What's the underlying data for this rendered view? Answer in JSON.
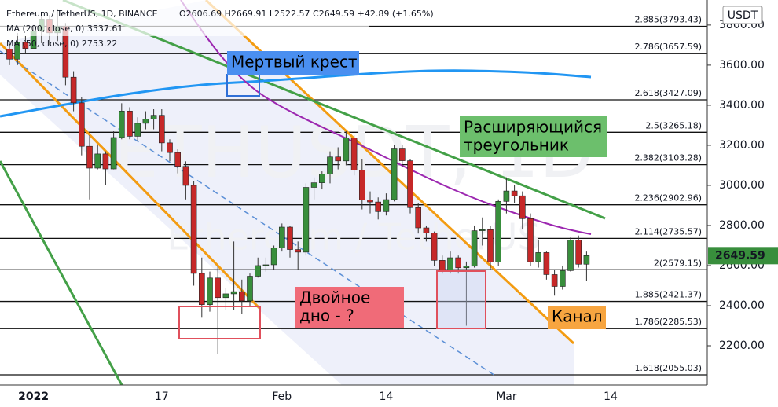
{
  "chart_data": {
    "type": "candlestick",
    "title": "Ethereum / TetherUS, 1D, BINANCE",
    "header_values": "O2606.69 H2669.91 L2522.57 C2649.59 +42.89 (+1.65%)",
    "indicators": [
      {
        "label": "MA (200, close, 0) 3537.61",
        "color": "#2196f3"
      },
      {
        "label": "MA (50, close, 0) 2753.22",
        "color": "#9c27b0"
      }
    ],
    "watermark": "ETHUSDT, 1D",
    "watermark_subtitle": "Ethereum / TetherUS",
    "currency": "USDT",
    "categories": [
      null,
      null,
      null,
      "2022",
      null,
      null,
      null,
      null,
      null,
      null,
      null,
      null,
      null,
      null,
      null,
      null,
      null,
      null,
      null,
      "17",
      null,
      null,
      null,
      null,
      null,
      null,
      null,
      null,
      null,
      null,
      null,
      null,
      null,
      null,
      "Feb",
      null,
      null,
      null,
      null,
      null,
      null,
      null,
      null,
      null,
      null,
      null,
      null,
      "14",
      null,
      null,
      null,
      null,
      null,
      null,
      null,
      null,
      null,
      null,
      null,
      null,
      null,
      null,
      "Mar",
      null,
      null,
      null,
      null,
      null,
      null,
      null,
      null,
      null,
      null,
      null,
      null,
      "14"
    ],
    "open": [
      3680,
      3630,
      3714,
      3683,
      3769,
      3829,
      3761,
      3794,
      3540,
      3412,
      3195,
      3086,
      3157,
      3082,
      3239,
      3371,
      3245,
      3310,
      3331,
      3350,
      3212,
      3164,
      3095,
      3000,
      2561,
      2405,
      2538,
      2440,
      2459,
      2470,
      2424,
      2547,
      2600,
      2604,
      2688,
      2792,
      2680,
      2667,
      2990,
      3013,
      3057,
      3142,
      3122,
      3237,
      3076,
      2928,
      2917,
      2869,
      2929,
      3182,
      3123,
      2889,
      2788,
      2763,
      2626,
      2573,
      2639,
      2589,
      2597,
      2774,
      2779,
      2617,
      2920,
      2972,
      2948,
      2834,
      2619,
      2665,
      2555,
      2496,
      2575,
      2728,
      2606.69,
      null,
      null,
      null
    ],
    "high": [
      3720,
      3760,
      3745,
      3800,
      3860,
      3850,
      3880,
      3810,
      3570,
      3440,
      3250,
      3200,
      3170,
      3270,
      3410,
      3390,
      3340,
      3370,
      3380,
      3380,
      3230,
      3180,
      3120,
      3020,
      2640,
      2570,
      2600,
      2490,
      2720,
      2530,
      2560,
      2640,
      2640,
      2700,
      2810,
      2800,
      2720,
      3010,
      3040,
      3070,
      3170,
      3190,
      3270,
      3250,
      3130,
      2970,
      2940,
      2960,
      3200,
      3200,
      3130,
      2910,
      2800,
      2770,
      2650,
      2670,
      2650,
      2620,
      2800,
      2840,
      2800,
      2930,
      3040,
      3000,
      2970,
      2860,
      2730,
      2670,
      2580,
      2600,
      2740,
      2750,
      2669.91,
      null,
      null,
      null
    ],
    "low": [
      3600,
      3600,
      3660,
      3680,
      3710,
      3700,
      3720,
      3500,
      3370,
      3150,
      2930,
      3080,
      3000,
      3080,
      3230,
      3230,
      3220,
      3280,
      3280,
      3170,
      3120,
      3060,
      2930,
      2500,
      2340,
      2370,
      2160,
      2380,
      2380,
      2360,
      2400,
      2540,
      2570,
      2580,
      2670,
      2640,
      2580,
      2650,
      2930,
      2980,
      3010,
      3080,
      3100,
      3050,
      2880,
      2860,
      2830,
      2850,
      2920,
      3090,
      2860,
      2760,
      2720,
      2600,
      2560,
      2560,
      2560,
      2300,
      2590,
      2700,
      2580,
      2600,
      2860,
      2910,
      2780,
      2600,
      2590,
      2530,
      2450,
      2480,
      2570,
      2590,
      2522.57,
      null,
      null,
      null
    ],
    "close": [
      3630,
      3714,
      3683,
      3769,
      3829,
      3761,
      3794,
      3540,
      3412,
      3195,
      3086,
      3157,
      3082,
      3239,
      3371,
      3245,
      3310,
      3331,
      3350,
      3212,
      3164,
      3095,
      3000,
      2561,
      2405,
      2538,
      2440,
      2459,
      2470,
      2424,
      2547,
      2600,
      2604,
      2688,
      2792,
      2680,
      2667,
      2990,
      3013,
      3057,
      3142,
      3122,
      3237,
      3076,
      2928,
      2917,
      2869,
      2929,
      3182,
      3123,
      2889,
      2788,
      2763,
      2626,
      2573,
      2639,
      2589,
      2597,
      2774,
      2779,
      2617,
      2920,
      2972,
      2948,
      2834,
      2619,
      2665,
      2555,
      2496,
      2575,
      2728,
      2606.69,
      2649.59,
      null,
      null,
      null
    ],
    "up_color": "#388e3c",
    "down_color": "#c62828",
    "ylim": [
      2004,
      3925
    ],
    "yticks": [
      {
        "value": 2200,
        "label": "2200.00"
      },
      {
        "value": 2400,
        "label": "2400.00"
      },
      {
        "value": 2600,
        "label": "2600.00"
      },
      {
        "value": 2800,
        "label": "2800.00"
      },
      {
        "value": 3000,
        "label": "3000.00"
      },
      {
        "value": 3200,
        "label": "3200.00"
      },
      {
        "value": 3400,
        "label": "3400.00"
      },
      {
        "value": 3600,
        "label": "3600.00"
      },
      {
        "value": 3800,
        "label": "3800.00"
      }
    ],
    "fib_levels": [
      {
        "value": 3793.43,
        "label": "2.885(3793.43)"
      },
      {
        "value": 3657.59,
        "label": "2.786(3657.59)"
      },
      {
        "value": 3427.09,
        "label": "2.618(3427.09)"
      },
      {
        "value": 3265.18,
        "label": "2.5(3265.18)"
      },
      {
        "value": 3103.28,
        "label": "2.382(3103.28)"
      },
      {
        "value": 2902.96,
        "label": "2.236(2902.96)"
      },
      {
        "value": 2735.57,
        "label": "2.114(2735.57)"
      },
      {
        "value": 2579.15,
        "label": "2(2579.15)"
      },
      {
        "value": 2421.37,
        "label": "1.885(2421.37)"
      },
      {
        "value": 2285.53,
        "label": "1.786(2285.53)"
      },
      {
        "value": 2055.03,
        "label": "1.618(2055.03)"
      }
    ],
    "annotations": [
      {
        "lines": [
          "Мертвый крест"
        ],
        "color": "#4a8ff0"
      },
      {
        "lines": [
          "Расширяющийся",
          "треугольник"
        ],
        "color": "#6cbf6c"
      },
      {
        "lines": [
          "Двойное",
          "дно - ?"
        ],
        "color": "#f06b78"
      },
      {
        "lines": [
          "Канал"
        ],
        "color": "#f7a540"
      }
    ]
  }
}
